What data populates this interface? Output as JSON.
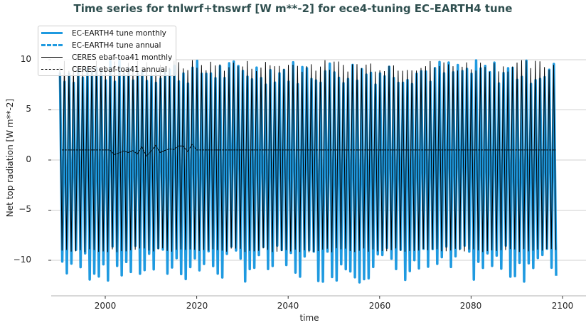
{
  "chart_data": {
    "type": "line",
    "title": "Time series for tnlwrf+tnswrf [W m**-2] for ece4-tuning EC-EARTH4 tune",
    "xlabel": "time",
    "ylabel": "Net top radiation [W m**-2]",
    "xlim": [
      1986,
      2106
    ],
    "ylim": [
      -13.5,
      13.8
    ],
    "xticks": [
      2000,
      2020,
      2040,
      2060,
      2080,
      2100
    ],
    "yticks": [
      -10,
      -5,
      0,
      5,
      10
    ],
    "ytick_labels": [
      "−10",
      "−5",
      "0",
      "5",
      "10"
    ],
    "grid": true,
    "legend_position": "upper left",
    "series": [
      {
        "name": "EC-EARTH4 tune monthly",
        "color": "#1f9ae0",
        "style": "solid",
        "width": 3.5,
        "x_start": 1990.0,
        "x_end": 2099.0,
        "seasonal_max_range": [
          7.5,
          10.0
        ],
        "seasonal_min_range": [
          -12.2,
          -8.5
        ],
        "period_years": 1
      },
      {
        "name": "EC-EARTH4 tune annual",
        "color": "#1f9ae0",
        "style": "dashed",
        "width": 3.5,
        "x_start": 1990.5,
        "x_end": 2098.5,
        "approx_value": 1.0
      },
      {
        "name": "CERES ebaf-toa41 monthly",
        "color": "#000000",
        "style": "solid",
        "width": 1,
        "x_start": 1990.0,
        "x_end": 2098.5,
        "seasonal_max_range": [
          8.8,
          10.0
        ],
        "seasonal_min_range": [
          -9.2,
          -8.8
        ],
        "period_years": 1
      },
      {
        "name": "CERES ebaf-toa41 annual",
        "color": "#000000",
        "style": "dashed",
        "width": 1,
        "x_start": 1990.5,
        "x_end": 2098.5,
        "approx_value": 1.0,
        "variable_segment": {
          "x": [
            2001,
            2002,
            2003,
            2004,
            2005,
            2006,
            2007,
            2008,
            2009,
            2010,
            2011,
            2012,
            2013,
            2014,
            2015,
            2016,
            2017,
            2018,
            2019,
            2020,
            2021,
            2022
          ],
          "y": [
            1.0,
            0.55,
            0.7,
            0.9,
            0.75,
            0.95,
            0.6,
            1.3,
            0.4,
            0.85,
            1.45,
            0.75,
            0.95,
            1.1,
            1.05,
            1.4,
            1.4,
            0.85,
            1.55,
            1.0,
            1.0,
            1.0
          ]
        }
      }
    ]
  },
  "legend": {
    "items": [
      {
        "label": "EC-EARTH4 tune monthly"
      },
      {
        "label": "EC-EARTH4 tune annual"
      },
      {
        "label": "CERES ebaf-toa41 monthly"
      },
      {
        "label": "CERES ebaf-toa41 annual"
      }
    ]
  },
  "axes": {
    "x_tick_labels": [
      "2000",
      "2020",
      "2040",
      "2060",
      "2080",
      "2100"
    ],
    "y_tick_labels": [
      "−10",
      "−5",
      "0",
      "5",
      "10"
    ]
  }
}
